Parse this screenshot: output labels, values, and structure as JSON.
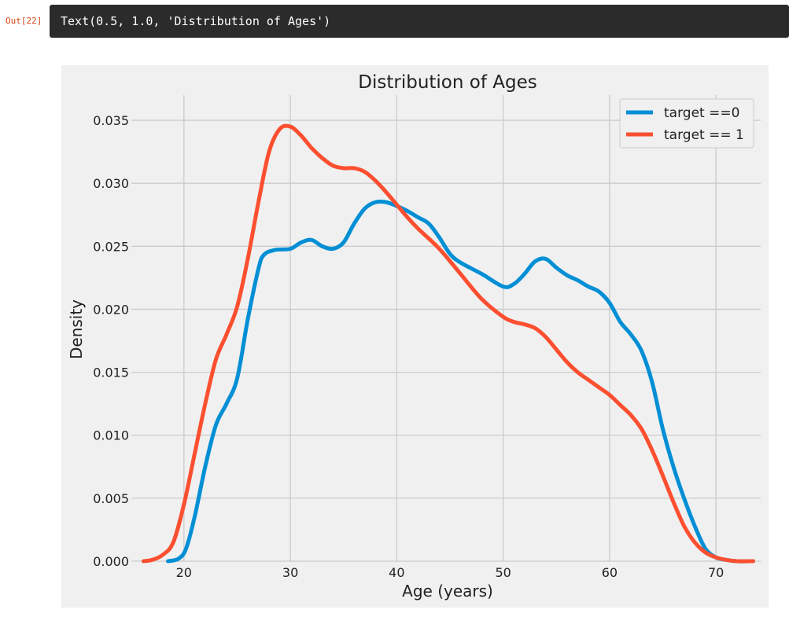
{
  "cell": {
    "prompt": "Out[22]",
    "output_text": "Text(0.5, 1.0, 'Distribution of Ages')"
  },
  "colors": {
    "series0": "#008fd5",
    "series1": "#fc4f30",
    "background": "#f0f0f0",
    "grid": "#cbcbcb"
  },
  "chart_data": {
    "type": "line",
    "title": "Distribution of Ages",
    "xlabel": "Age (years)",
    "ylabel": "Density",
    "xlim": [
      15.8,
      74.2
    ],
    "ylim": [
      0.0,
      0.037
    ],
    "xticks": [
      "20",
      "30",
      "40",
      "50",
      "60",
      "70"
    ],
    "yticks": [
      "0.000",
      "0.005",
      "0.010",
      "0.015",
      "0.020",
      "0.025",
      "0.030",
      "0.035"
    ],
    "grid": true,
    "legend_position": "top-right",
    "series": [
      {
        "name": "target ==0",
        "color": "#008fd5",
        "x": [
          18.5,
          19.5,
          20.2,
          21,
          22,
          23,
          24,
          25,
          26,
          27,
          27.5,
          28.5,
          30,
          31,
          32,
          33,
          34,
          35,
          36,
          37,
          38,
          39,
          40,
          41,
          42,
          43,
          44,
          45,
          46,
          48,
          50,
          51,
          52,
          53,
          54,
          55,
          56,
          57,
          58,
          59,
          60,
          61,
          62,
          63,
          64,
          65,
          66,
          67,
          68,
          69,
          70,
          71,
          72,
          73.5
        ],
        "y": [
          0.0,
          0.0002,
          0.001,
          0.0035,
          0.0075,
          0.0108,
          0.0125,
          0.0145,
          0.0192,
          0.0232,
          0.0243,
          0.0247,
          0.0248,
          0.0253,
          0.0255,
          0.025,
          0.0248,
          0.0253,
          0.0268,
          0.028,
          0.0285,
          0.0285,
          0.0282,
          0.0278,
          0.0273,
          0.0268,
          0.0257,
          0.0244,
          0.0237,
          0.0228,
          0.0218,
          0.022,
          0.0228,
          0.0238,
          0.024,
          0.0233,
          0.0227,
          0.0223,
          0.0218,
          0.0214,
          0.0205,
          0.019,
          0.018,
          0.0167,
          0.0142,
          0.0105,
          0.0075,
          0.005,
          0.0028,
          0.001,
          0.0003,
          0.0001,
          0.0,
          0.0
        ]
      },
      {
        "name": "target == 1",
        "color": "#fc4f30",
        "x": [
          16.2,
          17,
          18,
          19,
          20,
          21,
          22,
          23,
          24,
          25,
          26,
          27,
          28,
          29,
          30,
          31,
          32,
          33,
          34,
          35,
          36,
          37,
          38,
          39,
          40,
          41,
          42,
          44,
          46,
          48,
          50,
          51,
          52,
          53,
          54,
          55,
          56,
          57,
          58,
          59,
          60,
          61,
          62,
          63,
          64,
          65,
          66,
          67,
          68,
          69,
          70,
          71,
          72,
          73.5
        ],
        "y": [
          0.0,
          0.0001,
          0.0005,
          0.0015,
          0.0045,
          0.0085,
          0.0125,
          0.016,
          0.018,
          0.0202,
          0.024,
          0.0285,
          0.0325,
          0.0343,
          0.0345,
          0.0338,
          0.0328,
          0.032,
          0.0314,
          0.0312,
          0.0312,
          0.0309,
          0.0302,
          0.0293,
          0.0283,
          0.0273,
          0.0264,
          0.0248,
          0.0228,
          0.0208,
          0.0194,
          0.019,
          0.0188,
          0.0185,
          0.0178,
          0.0168,
          0.0158,
          0.015,
          0.0144,
          0.0138,
          0.0132,
          0.0124,
          0.0116,
          0.0105,
          0.0088,
          0.0068,
          0.0047,
          0.0028,
          0.0015,
          0.0007,
          0.0003,
          0.0001,
          0.0,
          0.0
        ]
      }
    ]
  }
}
